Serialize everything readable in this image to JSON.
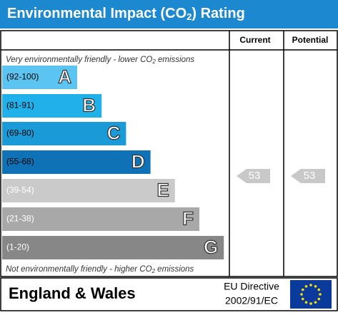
{
  "header": {
    "title": [
      "Environmental Impact (CO",
      "2",
      ") Rating"
    ]
  },
  "columns": [
    "Current",
    "Potential"
  ],
  "top_note": [
    "Very environmentally friendly - lower CO",
    "2",
    " emissions"
  ],
  "bands": [
    {
      "range": "(92-100)",
      "letter": "A",
      "color": "#5cc4f0"
    },
    {
      "range": "(81-91)",
      "letter": "B",
      "color": "#20b1ea"
    },
    {
      "range": "(69-80)",
      "letter": "C",
      "color": "#1a9ad6"
    },
    {
      "range": "(55-68)",
      "letter": "D",
      "color": "#0f72b6"
    },
    {
      "range": "(39-54)",
      "letter": "E",
      "color": "#cacaca"
    },
    {
      "range": "(21-38)",
      "letter": "F",
      "color": "#a8a8a8"
    },
    {
      "range": "(1-20)",
      "letter": "G",
      "color": "#878787"
    }
  ],
  "current": {
    "value": 53
  },
  "potential": {
    "value": 53
  },
  "bottom_note": [
    "Not environmentally friendly - higher CO",
    "2",
    " emissions"
  ],
  "footer": {
    "region": "England & Wales",
    "directive": [
      "EU Directive",
      "2002/91/EC"
    ]
  }
}
